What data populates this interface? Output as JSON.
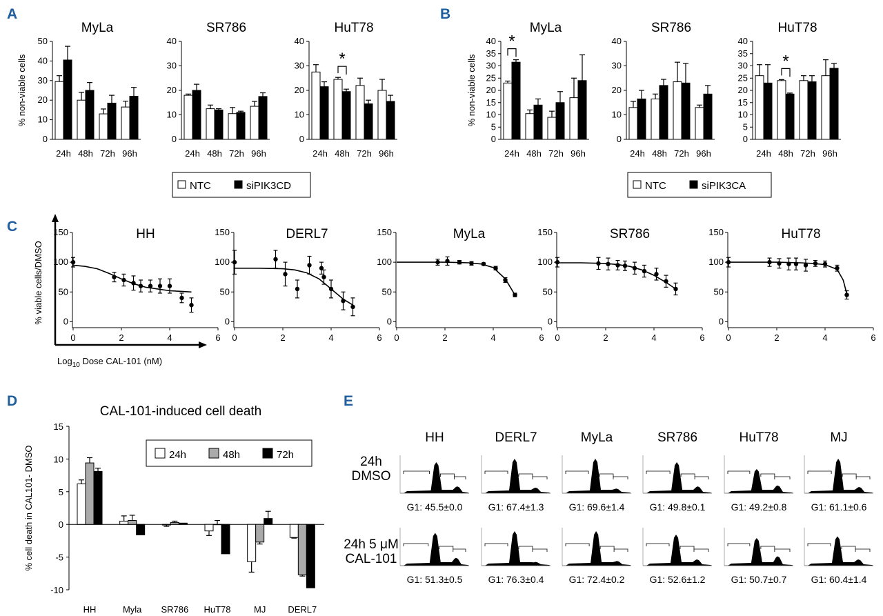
{
  "panel_labels": {
    "A": "A",
    "B": "B",
    "C": "C",
    "D": "D",
    "E": "E"
  },
  "chart_data": [
    {
      "panel": "A",
      "type": "bar",
      "ylabel": "% non-viable cells",
      "legend": {
        "items": [
          "NTC",
          "siPIK3CD"
        ],
        "colors": [
          "#ffffff",
          "#000000"
        ],
        "placement": "bottom"
      },
      "categories": [
        "24h",
        "48h",
        "72h",
        "96h"
      ],
      "subplots": [
        {
          "title": "MyLa",
          "ylim": [
            0,
            50
          ],
          "yticks": [
            0,
            10,
            20,
            30,
            40,
            50
          ],
          "series": [
            {
              "name": "NTC",
              "values": [
                29.5,
                20,
                13,
                16.5
              ],
              "errors": [
                3,
                4,
                2.5,
                3
              ]
            },
            {
              "name": "siPIK3CD",
              "values": [
                40.5,
                25,
                18.5,
                22
              ],
              "errors": [
                7,
                4,
                4,
                4.5
              ]
            }
          ]
        },
        {
          "title": "SR786",
          "ylim": [
            0,
            40
          ],
          "yticks": [
            0,
            10,
            20,
            30,
            40
          ],
          "series": [
            {
              "name": "NTC",
              "values": [
                18,
                12.5,
                10.5,
                13.5
              ],
              "errors": [
                0.5,
                1.5,
                2.5,
                2
              ]
            },
            {
              "name": "siPIK3CD",
              "values": [
                20,
                12,
                11,
                17.5
              ],
              "errors": [
                2.5,
                0.5,
                0.5,
                1.5
              ]
            }
          ]
        },
        {
          "title": "HuT78",
          "ylim": [
            0,
            40
          ],
          "yticks": [
            0,
            10,
            20,
            30,
            40
          ],
          "significance": {
            "category": 1,
            "label": "*"
          },
          "series": [
            {
              "name": "NTC",
              "values": [
                27.5,
                24.5,
                22,
                20
              ],
              "errors": [
                3,
                0.8,
                3,
                4.5
              ]
            },
            {
              "name": "siPIK3CD",
              "values": [
                21.5,
                19.5,
                14.5,
                15.5
              ],
              "errors": [
                2,
                1,
                1.5,
                2.5
              ]
            }
          ]
        }
      ]
    },
    {
      "panel": "B",
      "type": "bar",
      "ylabel": "% non-viable cells",
      "legend": {
        "items": [
          "NTC",
          "siPIK3CA"
        ],
        "colors": [
          "#ffffff",
          "#000000"
        ],
        "placement": "bottom"
      },
      "categories": [
        "24h",
        "48h",
        "72h",
        "96h"
      ],
      "subplots": [
        {
          "title": "MyLa",
          "ylim": [
            0,
            40
          ],
          "yticks": [
            0,
            5,
            10,
            15,
            20,
            25,
            30,
            35,
            40
          ],
          "significance": {
            "category": 0,
            "label": "*"
          },
          "series": [
            {
              "name": "NTC",
              "values": [
                23,
                10.5,
                9,
                17
              ],
              "errors": [
                0.8,
                1.5,
                2.5,
                8
              ]
            },
            {
              "name": "siPIK3CA",
              "values": [
                31.5,
                14,
                15,
                24
              ],
              "errors": [
                1,
                2.5,
                4.5,
                10.5
              ]
            }
          ]
        },
        {
          "title": "SR786",
          "ylim": [
            0,
            40
          ],
          "yticks": [
            0,
            10,
            20,
            30,
            40
          ],
          "series": [
            {
              "name": "NTC",
              "values": [
                13,
                16.5,
                23.5,
                13
              ],
              "errors": [
                2.5,
                2,
                8,
                1
              ]
            },
            {
              "name": "siPIK3CA",
              "values": [
                16.5,
                22,
                23,
                18.5
              ],
              "errors": [
                3.5,
                2.5,
                8,
                3.5
              ]
            }
          ]
        },
        {
          "title": "HuT78",
          "ylim": [
            0,
            40
          ],
          "yticks": [
            0,
            5,
            10,
            15,
            20,
            25,
            30,
            35,
            40
          ],
          "significance": {
            "category": 1,
            "label": "*"
          },
          "series": [
            {
              "name": "NTC",
              "values": [
                26,
                24,
                24,
                26
              ],
              "errors": [
                4.5,
                0.4,
                2,
                6.5
              ]
            },
            {
              "name": "siPIK3CA",
              "values": [
                23,
                18.5,
                23.5,
                29
              ],
              "errors": [
                7.5,
                0.4,
                2.5,
                2
              ]
            }
          ]
        }
      ]
    },
    {
      "panel": "C",
      "type": "scatter",
      "ylabel": "% viable cells/DMSO",
      "xlabel_main": "Log",
      "xlabel_sub": "10",
      "xlabel_rest": " Dose CAL-101 (nM)",
      "xlim": [
        0,
        6
      ],
      "xticks": [
        0,
        2,
        4,
        6
      ],
      "ylim": [
        0,
        150
      ],
      "yticks": [
        0,
        50,
        100,
        150
      ],
      "subplots": [
        {
          "title": "HH",
          "points": [
            [
              0,
              100,
              8
            ],
            [
              1.7,
              75,
              8
            ],
            [
              2.1,
              70,
              10
            ],
            [
              2.5,
              65,
              12
            ],
            [
              2.8,
              60,
              10
            ],
            [
              3.2,
              60,
              10
            ],
            [
              3.6,
              60,
              12
            ],
            [
              4.0,
              60,
              12
            ],
            [
              4.5,
              40,
              8
            ],
            [
              4.9,
              28,
              12
            ]
          ],
          "curve": [
            [
              0,
              95
            ],
            [
              0.5,
              93
            ],
            [
              1,
              89
            ],
            [
              1.5,
              81
            ],
            [
              2,
              72
            ],
            [
              2.5,
              64
            ],
            [
              3,
              58
            ],
            [
              3.5,
              55
            ],
            [
              4,
              52
            ],
            [
              4.5,
              51
            ],
            [
              4.9,
              50
            ]
          ]
        },
        {
          "title": "DERL7",
          "points": [
            [
              0,
              100,
              20
            ],
            [
              1.7,
              105,
              15
            ],
            [
              2.1,
              80,
              20
            ],
            [
              2.6,
              55,
              15
            ],
            [
              3.1,
              95,
              15
            ],
            [
              3.6,
              90,
              10
            ],
            [
              3.7,
              75,
              12
            ],
            [
              4.0,
              55,
              15
            ],
            [
              4.5,
              35,
              15
            ],
            [
              4.9,
              25,
              15
            ]
          ],
          "curve": [
            [
              0,
              90
            ],
            [
              1,
              90
            ],
            [
              2,
              89
            ],
            [
              2.5,
              87
            ],
            [
              3,
              82
            ],
            [
              3.5,
              72
            ],
            [
              4,
              55
            ],
            [
              4.5,
              38
            ],
            [
              4.9,
              28
            ]
          ]
        },
        {
          "title": "MyLa",
          "points": [
            [
              1.7,
              100,
              5
            ],
            [
              2.1,
              102,
              7
            ],
            [
              2.6,
              100,
              3
            ],
            [
              3.1,
              98,
              3
            ],
            [
              3.6,
              97,
              2
            ],
            [
              4.1,
              90,
              3
            ],
            [
              4.5,
              70,
              4
            ],
            [
              4.9,
              45,
              3
            ]
          ],
          "curve": [
            [
              0,
              100
            ],
            [
              1,
              100
            ],
            [
              2,
              100
            ],
            [
              3,
              99
            ],
            [
              3.5,
              97
            ],
            [
              4,
              91
            ],
            [
              4.5,
              72
            ],
            [
              4.9,
              45
            ]
          ]
        },
        {
          "title": "SR786",
          "points": [
            [
              0,
              100,
              8
            ],
            [
              1.7,
              98,
              10
            ],
            [
              2.1,
              97,
              10
            ],
            [
              2.5,
              95,
              8
            ],
            [
              2.8,
              94,
              8
            ],
            [
              3.2,
              90,
              10
            ],
            [
              3.6,
              85,
              10
            ],
            [
              4.1,
              80,
              10
            ],
            [
              4.5,
              68,
              10
            ],
            [
              4.9,
              55,
              10
            ]
          ],
          "curve": [
            [
              0,
              99
            ],
            [
              1,
              99
            ],
            [
              2,
              98
            ],
            [
              2.5,
              96
            ],
            [
              3,
              93
            ],
            [
              3.5,
              87
            ],
            [
              4,
              78
            ],
            [
              4.5,
              66
            ],
            [
              4.9,
              55
            ]
          ]
        },
        {
          "title": "HuT78",
          "points": [
            [
              0,
              100,
              8
            ],
            [
              1.7,
              100,
              7
            ],
            [
              2.1,
              98,
              8
            ],
            [
              2.5,
              97,
              10
            ],
            [
              2.8,
              97,
              10
            ],
            [
              3.2,
              95,
              10
            ],
            [
              3.6,
              98,
              5
            ],
            [
              4.0,
              97,
              5
            ],
            [
              4.5,
              90,
              5
            ],
            [
              4.9,
              45,
              7
            ]
          ],
          "curve": [
            [
              0,
              100
            ],
            [
              2,
              100
            ],
            [
              3,
              99
            ],
            [
              3.5,
              98
            ],
            [
              4,
              96
            ],
            [
              4.5,
              88
            ],
            [
              4.75,
              70
            ],
            [
              4.9,
              47
            ]
          ]
        }
      ]
    },
    {
      "panel": "D",
      "type": "bar",
      "title": "CAL-101-induced cell death",
      "ylabel": "% cell death in CAL101- DMSO",
      "ylim": [
        -10,
        15
      ],
      "yticks": [
        -10,
        -5,
        0,
        5,
        10,
        15
      ],
      "categories": [
        "HH",
        "Myla",
        "SR786",
        "HuT78",
        "MJ",
        "DERL7"
      ],
      "legend": {
        "items": [
          "24h",
          "48h",
          "72h"
        ],
        "colors": [
          "#ffffff",
          "#aaaaaa",
          "#000000"
        ],
        "placement": "top-right"
      },
      "series": [
        {
          "name": "24h",
          "values": [
            6.2,
            0.5,
            -0.1,
            -1.0,
            -5.7,
            -2.0
          ],
          "errors": [
            0.6,
            0.8,
            0.2,
            0.7,
            1.6,
            0.1
          ]
        },
        {
          "name": "48h",
          "values": [
            9.4,
            0.6,
            0.3,
            0,
            -2.7,
            -7.7
          ],
          "errors": [
            0.8,
            0.8,
            0.2,
            0.6,
            0.3,
            0.2
          ]
        },
        {
          "name": "72h",
          "values": [
            8.1,
            -1.6,
            0.2,
            -4.5,
            0.9,
            -9.7
          ],
          "errors": [
            0.5,
            0,
            0,
            0,
            1.1,
            0
          ]
        }
      ]
    }
  ],
  "panel_e": {
    "cell_lines": [
      "HH",
      "DERL7",
      "MyLa",
      "SR786",
      "HuT78",
      "MJ"
    ],
    "rows": [
      {
        "label_line1": "24h",
        "label_line2": "DMSO",
        "g1": [
          "G1: 45.5±0.0",
          "G1: 67.4±1.3",
          "G1: 69.6±1.4",
          "G1: 49.8±0.1",
          "G1: 49.2±0.8",
          "G1: 61.1±0.6"
        ],
        "peaks": [
          [
            0.58,
            0.9,
            0.22
          ],
          [
            0.5,
            1.0,
            0.18
          ],
          [
            0.5,
            1.0,
            0.15
          ],
          [
            0.52,
            0.9,
            0.22
          ],
          [
            0.48,
            0.7,
            0.25
          ],
          [
            0.52,
            1.0,
            0.2
          ]
        ]
      },
      {
        "label_line1": "24h 5 μM",
        "label_line2": "CAL-101",
        "g1": [
          "G1: 51.3±0.5",
          "G1: 76.3±0.4",
          "G1: 72.4±0.2",
          "G1: 52.6±1.2",
          "G1: 50.7±0.7",
          "G1: 60.4±1.4"
        ],
        "peaks": [
          [
            0.55,
            0.95,
            0.25
          ],
          [
            0.5,
            1.0,
            0.12
          ],
          [
            0.52,
            1.0,
            0.15
          ],
          [
            0.5,
            0.9,
            0.2
          ],
          [
            0.48,
            0.8,
            0.3
          ],
          [
            0.5,
            0.85,
            0.2
          ]
        ]
      }
    ]
  }
}
